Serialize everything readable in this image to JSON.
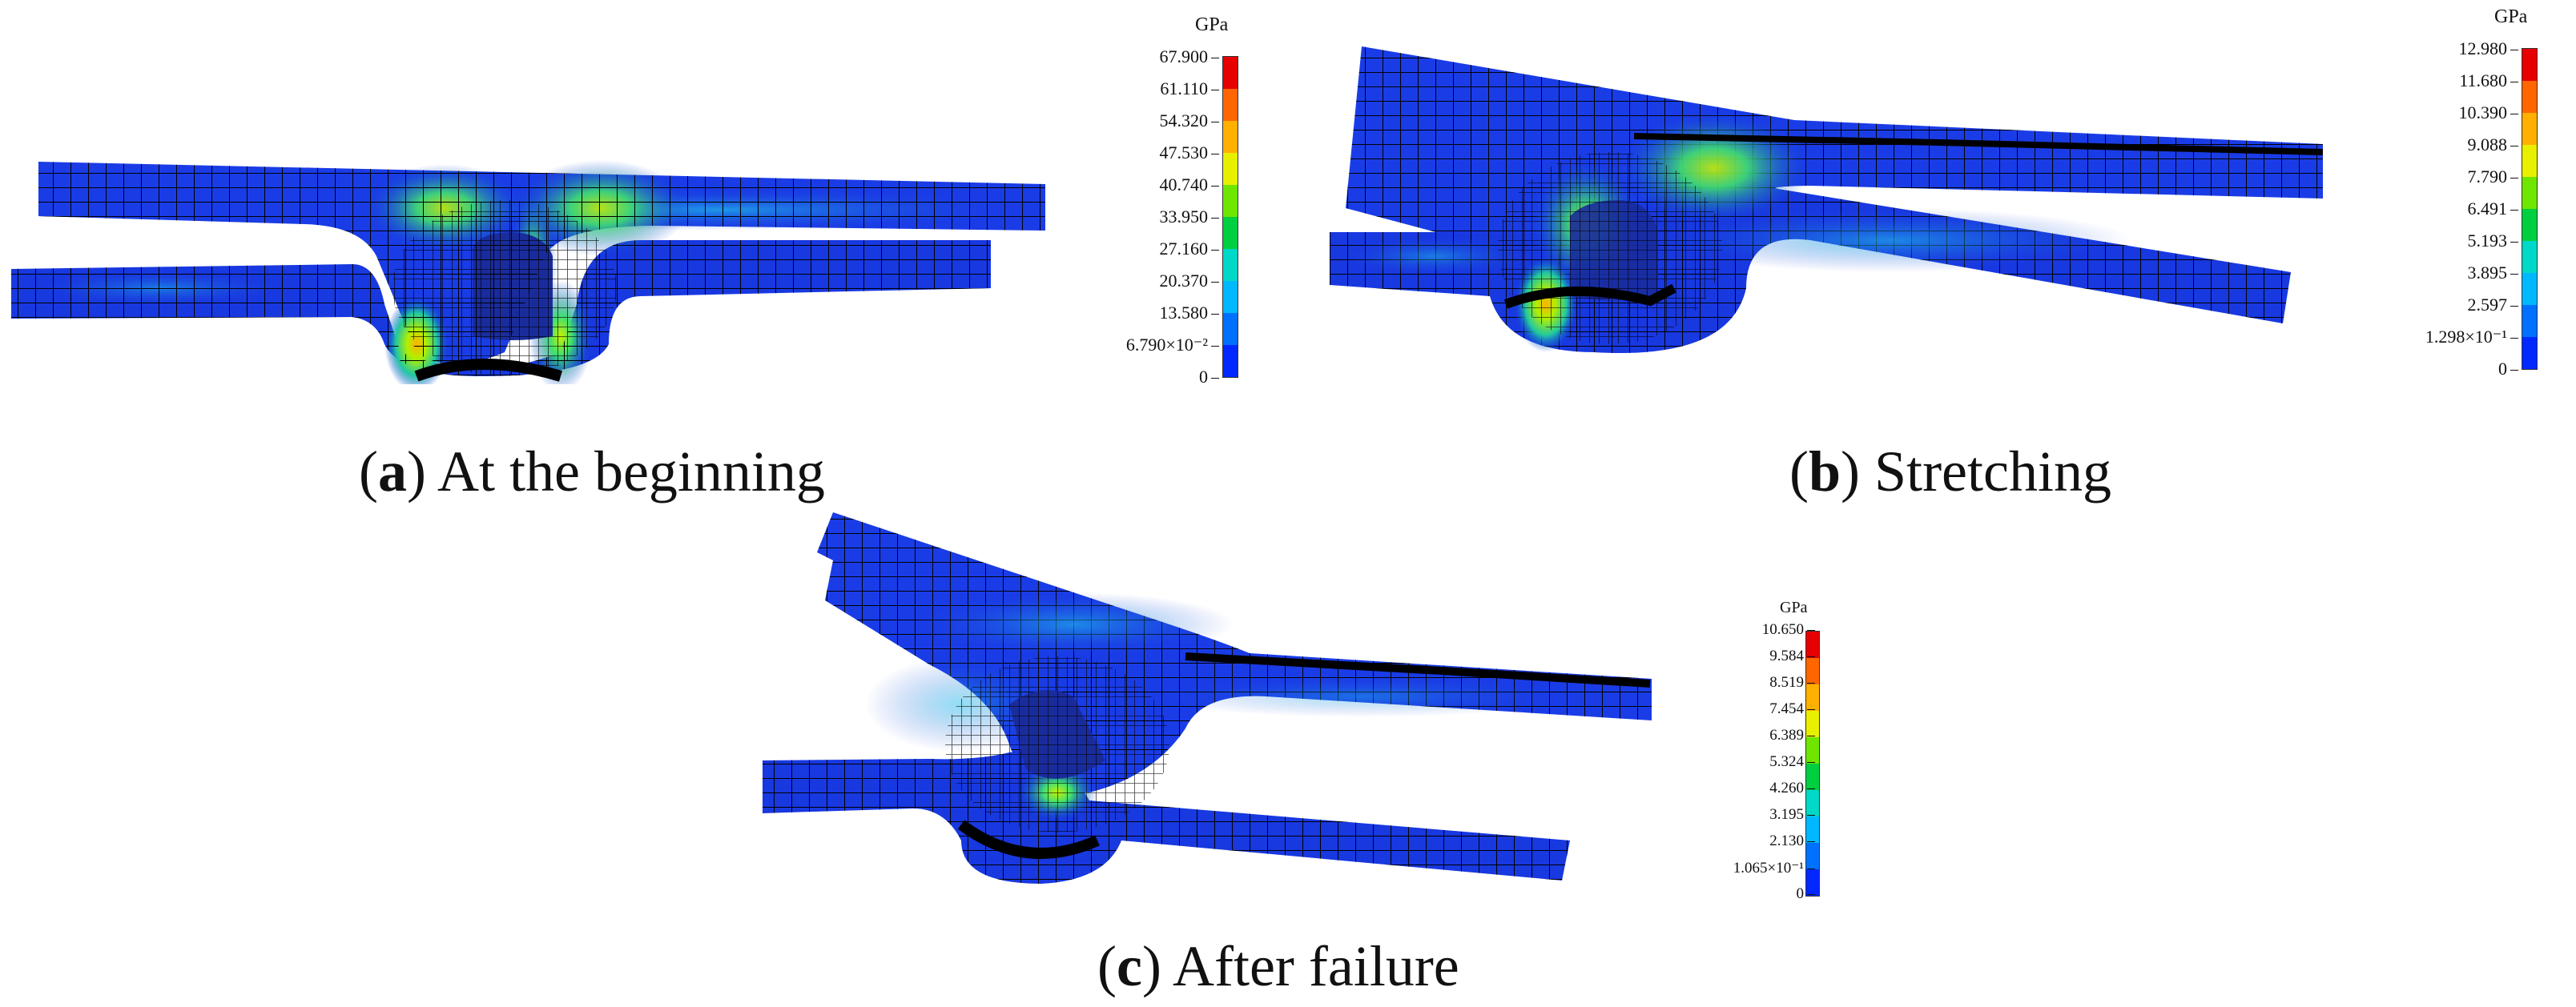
{
  "panels": [
    {
      "id": "a",
      "caption_letter": "a",
      "caption_text": "At the beginning",
      "legend": {
        "unit": "GPa",
        "ticks": [
          "67.900",
          "61.110",
          "54.320",
          "47.530",
          "40.740",
          "33.950",
          "27.160",
          "20.370",
          "13.580",
          "6.790×10⁻²",
          "0"
        ]
      }
    },
    {
      "id": "b",
      "caption_letter": "b",
      "caption_text": "Stretching",
      "legend": {
        "unit": "GPa",
        "ticks": [
          "12.980",
          "11.680",
          "10.390",
          "9.088",
          "7.790",
          "6.491",
          "5.193",
          "3.895",
          "2.597",
          "1.298×10⁻¹",
          "0"
        ]
      }
    },
    {
      "id": "c",
      "caption_letter": "c",
      "caption_text": "After failure",
      "legend": {
        "unit": "GPa",
        "ticks": [
          "10.650",
          "9.584",
          "8.519",
          "7.454",
          "6.389",
          "5.324",
          "4.260",
          "3.195",
          "2.130",
          "1.065×10⁻¹",
          "0"
        ]
      }
    }
  ],
  "colorbar": [
    "#e60000",
    "#ff6600",
    "#ffb000",
    "#e8f000",
    "#6ee600",
    "#00d040",
    "#00d8c8",
    "#00b8ff",
    "#0070ff",
    "#0028ff"
  ]
}
